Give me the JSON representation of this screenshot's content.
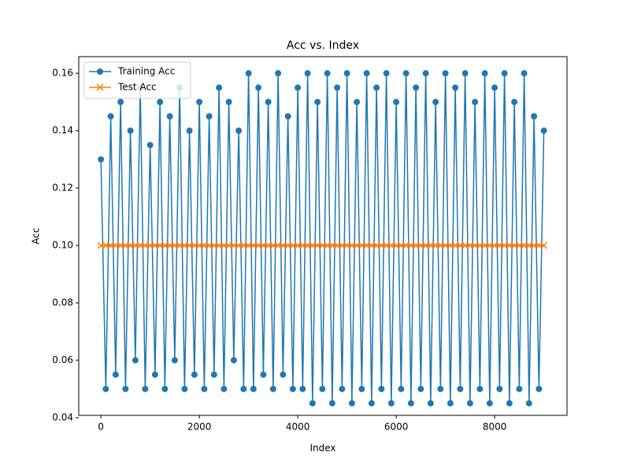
{
  "chart_data": {
    "type": "line",
    "title": "Acc vs. Index",
    "x_label": "Index",
    "y_label": "Acc",
    "x": [
      0,
      100,
      200,
      300,
      400,
      500,
      600,
      700,
      800,
      900,
      1000,
      1100,
      1200,
      1300,
      1400,
      1500,
      1600,
      1700,
      1800,
      1900,
      2000,
      2100,
      2200,
      2300,
      2400,
      2500,
      2600,
      2700,
      2800,
      2900,
      3000,
      3100,
      3200,
      3300,
      3400,
      3500,
      3600,
      3700,
      3800,
      3900,
      4000,
      4100,
      4200,
      4300,
      4400,
      4500,
      4600,
      4700,
      4800,
      4900,
      5000,
      5100,
      5200,
      5300,
      5400,
      5500,
      5600,
      5700,
      5800,
      5900,
      6000,
      6100,
      6200,
      6300,
      6400,
      6500,
      6600,
      6700,
      6800,
      6900,
      7000,
      7100,
      7200,
      7300,
      7400,
      7500,
      7600,
      7700,
      7800,
      7900,
      8000,
      8100,
      8200,
      8300,
      8400,
      8500,
      8600,
      8700,
      8800,
      8900,
      9000
    ],
    "series": [
      {
        "name": "Training Acc",
        "color": "#1f77b4",
        "marker": "o",
        "values": [
          0.13,
          0.05,
          0.145,
          0.055,
          0.15,
          0.05,
          0.14,
          0.06,
          0.155,
          0.05,
          0.135,
          0.055,
          0.15,
          0.05,
          0.145,
          0.06,
          0.155,
          0.05,
          0.14,
          0.055,
          0.15,
          0.05,
          0.145,
          0.055,
          0.155,
          0.05,
          0.15,
          0.06,
          0.14,
          0.05,
          0.16,
          0.05,
          0.155,
          0.055,
          0.15,
          0.05,
          0.16,
          0.055,
          0.145,
          0.05,
          0.155,
          0.05,
          0.16,
          0.045,
          0.15,
          0.05,
          0.16,
          0.045,
          0.155,
          0.05,
          0.16,
          0.045,
          0.15,
          0.05,
          0.16,
          0.045,
          0.155,
          0.05,
          0.16,
          0.045,
          0.15,
          0.05,
          0.16,
          0.045,
          0.155,
          0.05,
          0.16,
          0.045,
          0.15,
          0.05,
          0.16,
          0.045,
          0.155,
          0.05,
          0.16,
          0.045,
          0.15,
          0.05,
          0.16,
          0.045,
          0.155,
          0.05,
          0.16,
          0.045,
          0.15,
          0.05,
          0.16,
          0.045,
          0.145,
          0.05,
          0.14
        ]
      },
      {
        "name": "Test Acc",
        "color": "#ff7f0e",
        "marker": "x",
        "values": [
          0.1,
          0.1,
          0.1,
          0.1,
          0.1,
          0.1,
          0.1,
          0.1,
          0.1,
          0.1,
          0.1,
          0.1,
          0.1,
          0.1,
          0.1,
          0.1,
          0.1,
          0.1,
          0.1,
          0.1,
          0.1,
          0.1,
          0.1,
          0.1,
          0.1,
          0.1,
          0.1,
          0.1,
          0.1,
          0.1,
          0.1,
          0.1,
          0.1,
          0.1,
          0.1,
          0.1,
          0.1,
          0.1,
          0.1,
          0.1,
          0.1,
          0.1,
          0.1,
          0.1,
          0.1,
          0.1,
          0.1,
          0.1,
          0.1,
          0.1,
          0.1,
          0.1,
          0.1,
          0.1,
          0.1,
          0.1,
          0.1,
          0.1,
          0.1,
          0.1,
          0.1,
          0.1,
          0.1,
          0.1,
          0.1,
          0.1,
          0.1,
          0.1,
          0.1,
          0.1,
          0.1,
          0.1,
          0.1,
          0.1,
          0.1,
          0.1,
          0.1,
          0.1,
          0.1,
          0.1,
          0.1,
          0.1,
          0.1,
          0.1,
          0.1,
          0.1,
          0.1,
          0.1,
          0.1,
          0.1,
          0.1
        ]
      }
    ],
    "xlim": [
      -450,
      9470
    ],
    "xticks": [
      0,
      2000,
      4000,
      6000,
      8000
    ],
    "ylim": [
      0.0408,
      0.1658
    ],
    "yticks": [
      0.04,
      0.06,
      0.08,
      {
        "value": 0.1,
        "label": "0.10"
      },
      0.12,
      0.14,
      0.16
    ],
    "legend": "upper left"
  }
}
